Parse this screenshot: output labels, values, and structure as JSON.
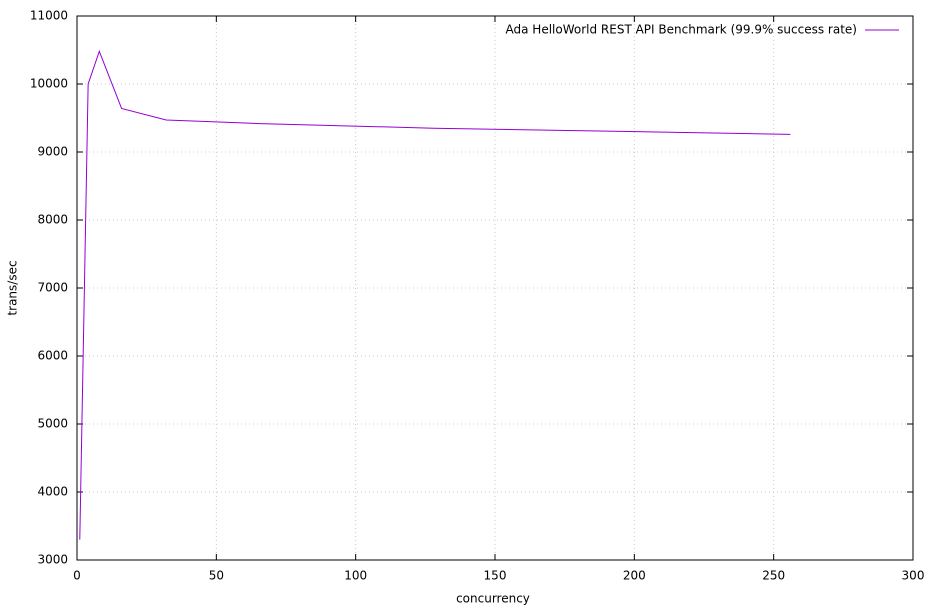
{
  "chart_data": {
    "type": "line",
    "legend_position": "top-right",
    "grid": true,
    "xlabel": "concurrency",
    "ylabel": "trans/sec",
    "x": [
      1,
      4,
      8,
      16,
      32,
      64,
      128,
      256
    ],
    "series": [
      {
        "name": "Ada HelloWorld REST API Benchmark (99.9% success rate)",
        "color": "#9400d3",
        "values": [
          3300,
          10000,
          10480,
          9640,
          9470,
          9420,
          9350,
          9260
        ]
      }
    ],
    "xlim": [
      0,
      300
    ],
    "xticks": [
      0,
      50,
      100,
      150,
      200,
      250,
      300
    ],
    "ylim": [
      3000,
      11000
    ],
    "yticks": [
      3000,
      4000,
      5000,
      6000,
      7000,
      8000,
      9000,
      10000,
      11000
    ]
  }
}
